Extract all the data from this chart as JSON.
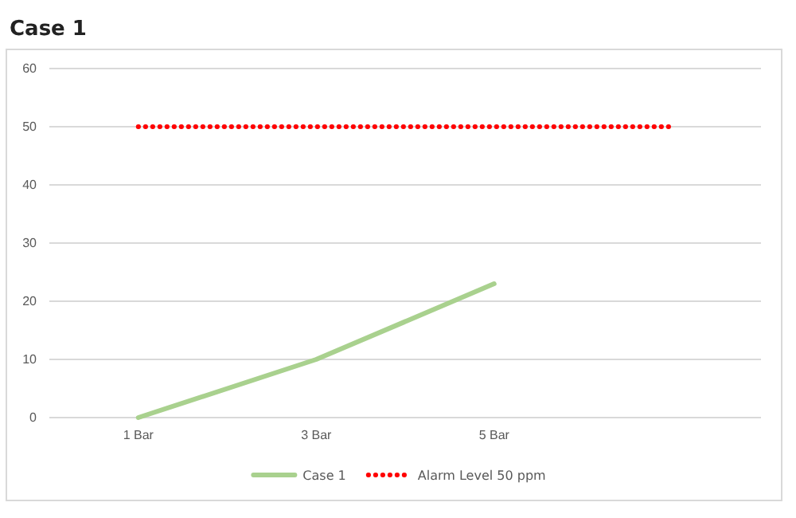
{
  "chart_data": {
    "type": "line",
    "title": "Case 1",
    "categories": [
      "1 Bar",
      "3 Bar",
      "5 Bar",
      null
    ],
    "series": [
      {
        "name": "Case 1",
        "color": "#a9d18e",
        "values": [
          0,
          10,
          23,
          null
        ],
        "line_style": "solid"
      },
      {
        "name": "Alarm Level 50 ppm",
        "color": "#ff0000",
        "values": [
          50,
          50,
          50,
          50
        ],
        "line_style": "dotted"
      }
    ],
    "ylim": [
      0,
      60
    ],
    "yticks": [
      0,
      10,
      20,
      30,
      40,
      50,
      60
    ],
    "grid": "y",
    "legend": "bottom",
    "marker": "none"
  }
}
